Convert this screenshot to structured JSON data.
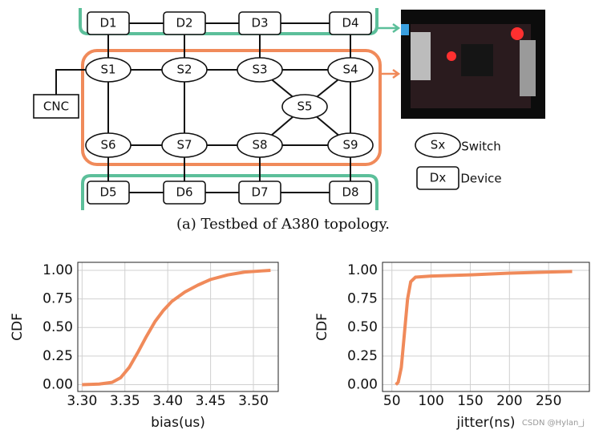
{
  "diagram": {
    "devices": [
      "D1",
      "D2",
      "D3",
      "D4",
      "D5",
      "D6",
      "D7",
      "D8"
    ],
    "switches": [
      "S1",
      "S2",
      "S3",
      "S4",
      "S5",
      "S6",
      "S7",
      "S8",
      "S9"
    ],
    "controller": "CNC",
    "legend": [
      {
        "symbol": "Sx",
        "label": "Switch"
      },
      {
        "symbol": "Dx",
        "label": "Device"
      }
    ],
    "caption": "(a) Testbed of A380 topology."
  },
  "watermark": "CSDN @Hylan_j",
  "chart_data": [
    {
      "type": "line",
      "x_label": "bias(us)",
      "y_label": "CDF",
      "x": [
        3.3,
        3.32,
        3.335,
        3.345,
        3.355,
        3.365,
        3.375,
        3.385,
        3.395,
        3.405,
        3.42,
        3.435,
        3.45,
        3.47,
        3.49,
        3.51,
        3.52
      ],
      "series": [
        {
          "color": "#f08a5a",
          "values": [
            0,
            0.005,
            0.02,
            0.06,
            0.15,
            0.28,
            0.42,
            0.55,
            0.65,
            0.73,
            0.81,
            0.87,
            0.92,
            0.96,
            0.985,
            0.995,
            1.0
          ]
        }
      ],
      "xlim": [
        3.295,
        3.529
      ],
      "ylim": [
        -0.06,
        1.07
      ],
      "xticks": [
        {
          "value": 3.3,
          "label": "3.30"
        },
        {
          "value": 3.35,
          "label": "3.35"
        },
        {
          "value": 3.4,
          "label": "3.40"
        },
        {
          "value": 3.45,
          "label": "3.45"
        },
        {
          "value": 3.5,
          "label": "3.50"
        }
      ],
      "yticks": [
        {
          "value": 0,
          "label": "0.00"
        },
        {
          "value": 0.25,
          "label": "0.25"
        },
        {
          "value": 0.5,
          "label": "0.50"
        },
        {
          "value": 0.75,
          "label": "0.75"
        },
        {
          "value": 1,
          "label": "1.00"
        }
      ],
      "grid": true
    },
    {
      "type": "line",
      "x_label": "jitter(ns)",
      "y_label": "CDF",
      "x": [
        55,
        58,
        62,
        66,
        70,
        74,
        80,
        100,
        150,
        200,
        250,
        280
      ],
      "series": [
        {
          "color": "#f08a5a",
          "values": [
            0,
            0.02,
            0.15,
            0.45,
            0.75,
            0.9,
            0.94,
            0.95,
            0.96,
            0.975,
            0.985,
            0.99
          ]
        }
      ],
      "xlim": [
        38,
        302
      ],
      "ylim": [
        -0.06,
        1.07
      ],
      "xticks": [
        50,
        100,
        150,
        200,
        250
      ],
      "yticks": [
        {
          "value": 0,
          "label": "0.00"
        },
        {
          "value": 0.25,
          "label": "0.25"
        },
        {
          "value": 0.5,
          "label": "0.50"
        },
        {
          "value": 0.75,
          "label": "0.75"
        },
        {
          "value": 1,
          "label": "1.00"
        }
      ],
      "grid": true
    }
  ]
}
